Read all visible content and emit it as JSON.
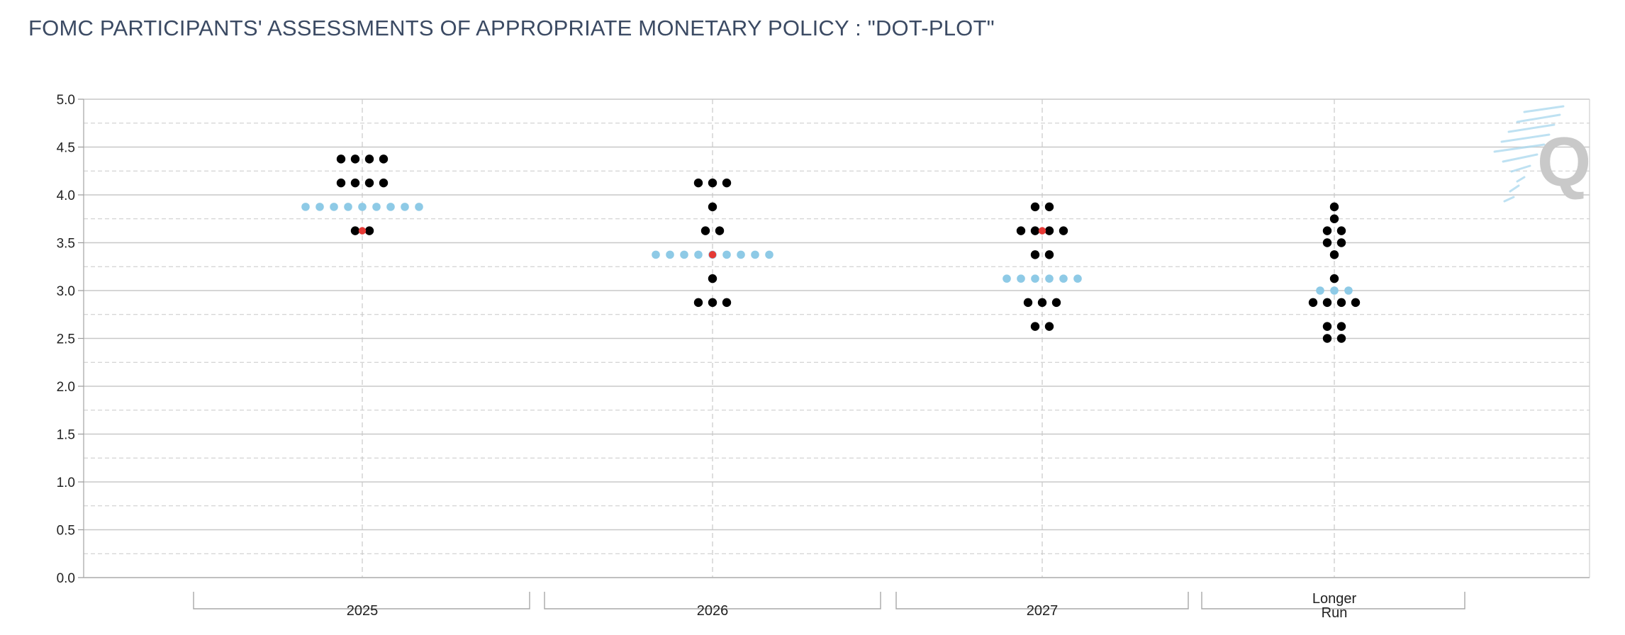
{
  "title": "FOMC PARTICIPANTS' ASSESSMENTS OF APPROPRIATE MONETARY POLICY : \"DOT-PLOT\"",
  "colors": {
    "dot": "#000000",
    "previous_dot": "#8ecae6",
    "median": "#e53935",
    "grid": "#c8c8c8",
    "title": "#3b4a63",
    "watermark": "#c9c9c9",
    "watermark_lines": "#a9d8ee"
  },
  "chart_data": {
    "type": "scatter",
    "ylim": [
      0,
      5
    ],
    "yticks": [
      "0.0",
      "0.5",
      "1.0",
      "1.5",
      "2.0",
      "2.5",
      "3.0",
      "3.5",
      "4.0",
      "4.5",
      "5.0"
    ],
    "grid": true,
    "categories": [
      {
        "label": "2025",
        "label_lines": [
          "2025"
        ]
      },
      {
        "label": "2026",
        "label_lines": [
          "2026"
        ]
      },
      {
        "label": "2027",
        "label_lines": [
          "2027"
        ]
      },
      {
        "label": "Longer Run",
        "label_lines": [
          "Longer",
          "Run"
        ]
      }
    ],
    "series": [
      {
        "kind": "participants",
        "values": [
          {
            "category": "2025",
            "y": 4.375,
            "count": 4
          },
          {
            "category": "2025",
            "y": 4.125,
            "count": 4
          },
          {
            "category": "2025",
            "y": 3.625,
            "count": 2
          },
          {
            "category": "2026",
            "y": 4.125,
            "count": 3
          },
          {
            "category": "2026",
            "y": 3.875,
            "count": 1
          },
          {
            "category": "2026",
            "y": 3.625,
            "count": 2
          },
          {
            "category": "2026",
            "y": 3.125,
            "count": 1
          },
          {
            "category": "2026",
            "y": 2.875,
            "count": 3
          },
          {
            "category": "2027",
            "y": 3.875,
            "count": 2
          },
          {
            "category": "2027",
            "y": 3.625,
            "count": 4
          },
          {
            "category": "2027",
            "y": 3.375,
            "count": 2
          },
          {
            "category": "2027",
            "y": 2.875,
            "count": 3
          },
          {
            "category": "2027",
            "y": 2.625,
            "count": 2
          },
          {
            "category": "Longer Run",
            "y": 3.875,
            "count": 1
          },
          {
            "category": "Longer Run",
            "y": 3.75,
            "count": 1
          },
          {
            "category": "Longer Run",
            "y": 3.625,
            "count": 2
          },
          {
            "category": "Longer Run",
            "y": 3.5,
            "count": 2
          },
          {
            "category": "Longer Run",
            "y": 3.375,
            "count": 1
          },
          {
            "category": "Longer Run",
            "y": 3.125,
            "count": 1
          },
          {
            "category": "Longer Run",
            "y": 2.875,
            "count": 4
          },
          {
            "category": "Longer Run",
            "y": 2.625,
            "count": 2
          },
          {
            "category": "Longer Run",
            "y": 2.5,
            "count": 2
          }
        ]
      },
      {
        "kind": "previous_median",
        "values": [
          {
            "category": "2025",
            "y": 3.875,
            "count": 9
          },
          {
            "category": "2026",
            "y": 3.375,
            "count": 9
          },
          {
            "category": "2027",
            "y": 3.125,
            "count": 6
          },
          {
            "category": "Longer Run",
            "y": 3.0,
            "count": 3
          }
        ]
      },
      {
        "kind": "median",
        "values": [
          {
            "category": "2025",
            "y": 3.625
          },
          {
            "category": "2026",
            "y": 3.375
          },
          {
            "category": "2027",
            "y": 3.625
          }
        ]
      }
    ]
  },
  "watermark": {
    "letter": "Q"
  }
}
